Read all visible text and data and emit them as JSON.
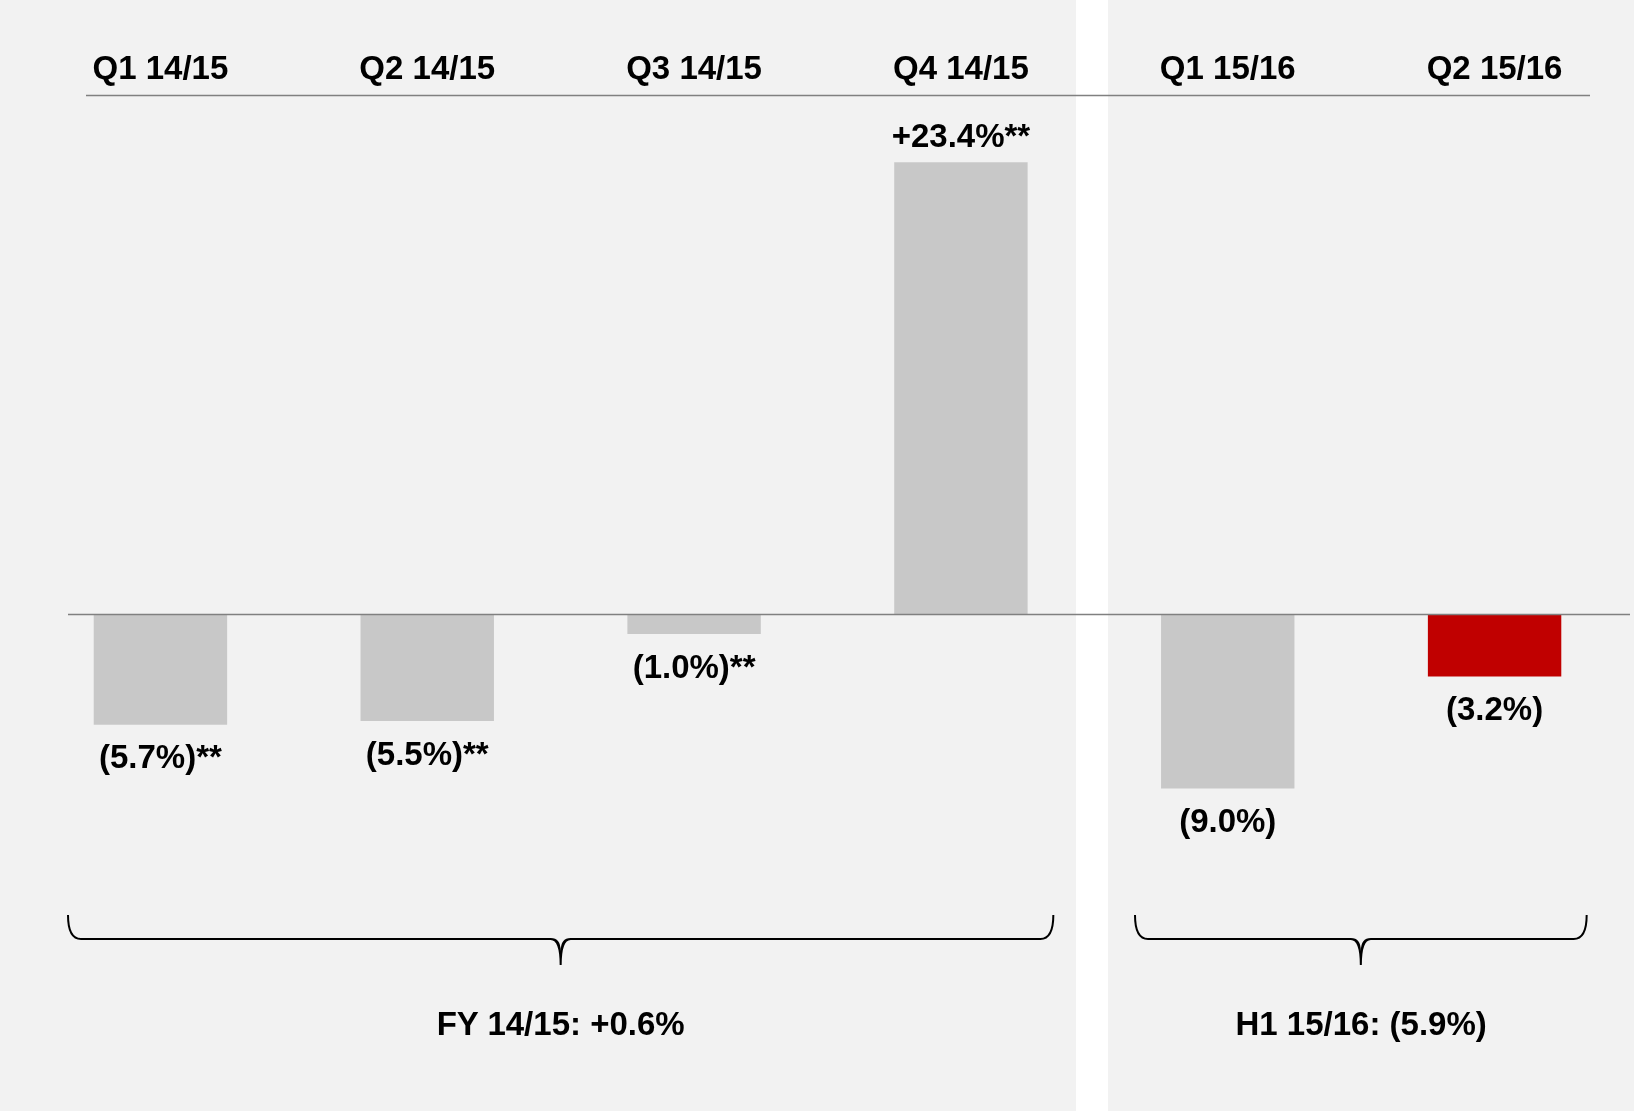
{
  "chart_data": {
    "type": "bar",
    "categories": [
      "Q1 14/15",
      "Q2 14/15",
      "Q3 14/15",
      "Q4 14/15",
      "Q1 15/16",
      "Q2 15/16"
    ],
    "values": [
      -5.7,
      -5.5,
      -1.0,
      23.4,
      -9.0,
      -3.2
    ],
    "colors": [
      "#c8c8c8",
      "#c8c8c8",
      "#c8c8c8",
      "#c8c8c8",
      "#c8c8c8",
      "#c00000"
    ],
    "value_labels": [
      "(5.7%)**",
      "(5.5%)**",
      "(1.0%)**",
      "+23.4%**",
      "(9.0%)",
      "(3.2%)"
    ],
    "annotations": [
      "FY 14/15: +0.6%",
      "H1 15/16: (5.9%)"
    ],
    "grid": false,
    "legend": false
  }
}
